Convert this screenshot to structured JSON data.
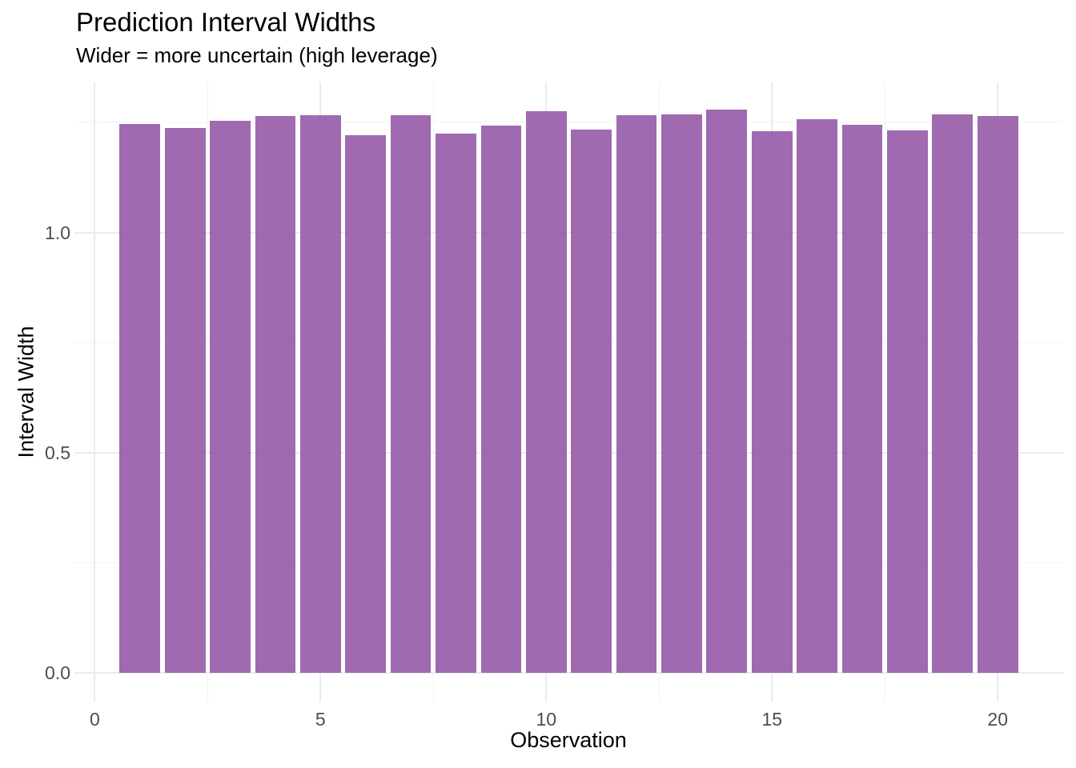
{
  "title": "Prediction Interval Widths",
  "subtitle": "Wider = more uncertain (high leverage)",
  "chart_data": {
    "type": "bar",
    "title": "Prediction Interval Widths",
    "subtitle": "Wider = more uncertain (high leverage)",
    "xlabel": "Observation",
    "ylabel": "Interval Width",
    "categories": [
      1,
      2,
      3,
      4,
      5,
      6,
      7,
      8,
      9,
      10,
      11,
      12,
      13,
      14,
      15,
      16,
      17,
      18,
      19,
      20
    ],
    "values": [
      1.247,
      1.238,
      1.254,
      1.265,
      1.267,
      1.22,
      1.267,
      1.224,
      1.243,
      1.276,
      1.233,
      1.267,
      1.268,
      1.279,
      1.23,
      1.258,
      1.245,
      1.232,
      1.269,
      1.265
    ],
    "bar_width_units": 0.9,
    "xlim": [
      -0.45,
      21.45
    ],
    "ylim": [
      -0.0663,
      1.3409
    ],
    "x_tick_values": [
      0,
      5,
      10,
      15,
      20
    ],
    "x_tick_labels": [
      "0",
      "5",
      "10",
      "15",
      "20"
    ],
    "y_tick_values": [
      0.0,
      0.5,
      1.0
    ],
    "y_tick_labels": [
      "0.0",
      "0.5",
      "1.0"
    ],
    "x_minor_values": [
      2.5,
      7.5,
      12.5,
      17.5
    ],
    "y_minor_values": [
      0.25,
      0.75,
      1.25
    ],
    "grid": true,
    "legend_position": "none",
    "colors": {
      "bar_fill": "rgba(146,85,165,0.88)",
      "bar_displayed_hex": "#9F69B0",
      "grid_major": "#EBEBEB",
      "grid_minor": "#F4F4F4",
      "tick_label": "#4D4D4D",
      "text": "#000000",
      "background": "#FFFFFF"
    }
  }
}
